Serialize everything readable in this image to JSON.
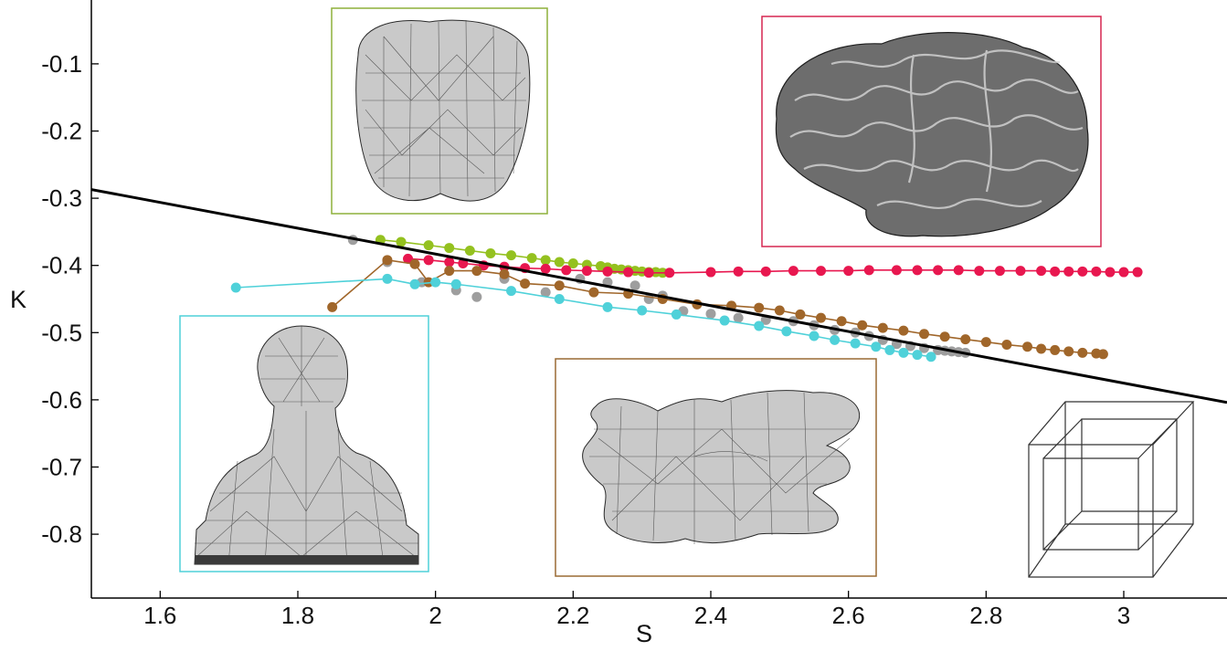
{
  "chart_data": {
    "type": "scatter",
    "xlabel": "S",
    "ylabel": "K",
    "xlim": [
      1.5,
      3.15
    ],
    "ylim": [
      -0.895,
      -0.005
    ],
    "xticks": [
      "1.6",
      "1.8",
      "2",
      "2.2",
      "2.4",
      "2.6",
      "2.8",
      "3"
    ],
    "yticks": [
      "-0.1",
      "-0.2",
      "-0.3",
      "-0.4",
      "-0.5",
      "-0.6",
      "-0.7",
      "-0.8"
    ],
    "grid": false,
    "legend": "none",
    "fit_line": {
      "x": [
        1.5,
        3.15
      ],
      "y": [
        -0.287,
        -0.604
      ],
      "color": "#000000"
    },
    "series": [
      {
        "color": "#9e9e9e",
        "connected": false,
        "x": [
          1.88,
          1.93,
          1.98,
          2.03,
          2.06,
          2.1,
          2.16,
          2.21,
          2.25,
          2.29,
          2.31,
          2.33,
          2.36,
          2.4,
          2.44,
          2.48,
          2.52,
          2.55,
          2.58,
          2.61,
          2.63,
          2.65,
          2.67,
          2.69,
          2.71,
          2.73,
          2.74,
          2.75,
          2.76,
          2.77
        ],
        "y": [
          -0.362,
          -0.395,
          -0.425,
          -0.437,
          -0.447,
          -0.42,
          -0.44,
          -0.42,
          -0.425,
          -0.43,
          -0.45,
          -0.445,
          -0.468,
          -0.472,
          -0.478,
          -0.481,
          -0.483,
          -0.489,
          -0.496,
          -0.5,
          -0.505,
          -0.511,
          -0.517,
          -0.52,
          -0.523,
          -0.526,
          -0.527,
          -0.528,
          -0.529,
          -0.53
        ]
      },
      {
        "color": "#94c11f",
        "connected": true,
        "x": [
          1.92,
          1.95,
          1.99,
          2.02,
          2.05,
          2.08,
          2.11,
          2.14,
          2.16,
          2.18,
          2.2,
          2.22,
          2.24,
          2.25,
          2.26,
          2.27,
          2.28,
          2.29,
          2.3,
          2.31,
          2.32,
          2.33
        ],
        "y": [
          -0.362,
          -0.365,
          -0.37,
          -0.374,
          -0.378,
          -0.382,
          -0.385,
          -0.389,
          -0.392,
          -0.395,
          -0.397,
          -0.399,
          -0.401,
          -0.403,
          -0.405,
          -0.406,
          -0.407,
          -0.408,
          -0.409,
          -0.41,
          -0.41,
          -0.411
        ]
      },
      {
        "color": "#e8174f",
        "connected": true,
        "x": [
          1.96,
          1.99,
          2.02,
          2.04,
          2.07,
          2.1,
          2.13,
          2.16,
          2.19,
          2.22,
          2.25,
          2.28,
          2.31,
          2.34,
          2.4,
          2.44,
          2.48,
          2.52,
          2.56,
          2.6,
          2.63,
          2.67,
          2.7,
          2.73,
          2.76,
          2.79,
          2.82,
          2.85,
          2.88,
          2.9,
          2.92,
          2.94,
          2.96,
          2.98,
          3.0,
          3.02
        ],
        "y": [
          -0.39,
          -0.392,
          -0.395,
          -0.397,
          -0.4,
          -0.402,
          -0.404,
          -0.405,
          -0.407,
          -0.408,
          -0.409,
          -0.41,
          -0.411,
          -0.411,
          -0.41,
          -0.409,
          -0.409,
          -0.408,
          -0.408,
          -0.408,
          -0.407,
          -0.407,
          -0.407,
          -0.407,
          -0.407,
          -0.408,
          -0.408,
          -0.408,
          -0.408,
          -0.409,
          -0.409,
          -0.409,
          -0.409,
          -0.41,
          -0.41,
          -0.41
        ]
      },
      {
        "color": "#a0662a",
        "connected": true,
        "x": [
          1.85,
          1.93,
          1.97,
          1.99,
          2.02,
          2.06,
          2.1,
          2.13,
          2.18,
          2.23,
          2.28,
          2.33,
          2.38,
          2.43,
          2.47,
          2.5,
          2.53,
          2.56,
          2.59,
          2.62,
          2.65,
          2.68,
          2.71,
          2.74,
          2.77,
          2.8,
          2.83,
          2.86,
          2.88,
          2.9,
          2.92,
          2.94,
          2.96,
          2.97
        ],
        "y": [
          -0.462,
          -0.392,
          -0.398,
          -0.425,
          -0.408,
          -0.408,
          -0.413,
          -0.427,
          -0.43,
          -0.44,
          -0.442,
          -0.45,
          -0.458,
          -0.46,
          -0.463,
          -0.467,
          -0.473,
          -0.478,
          -0.483,
          -0.489,
          -0.493,
          -0.497,
          -0.502,
          -0.506,
          -0.51,
          -0.514,
          -0.518,
          -0.521,
          -0.524,
          -0.526,
          -0.528,
          -0.53,
          -0.531,
          -0.532
        ]
      },
      {
        "color": "#4fd1d9",
        "connected": true,
        "x": [
          1.71,
          1.93,
          1.97,
          2.0,
          2.03,
          2.11,
          2.18,
          2.25,
          2.3,
          2.35,
          2.42,
          2.47,
          2.51,
          2.55,
          2.58,
          2.61,
          2.64,
          2.66,
          2.68,
          2.7,
          2.72
        ],
        "y": [
          -0.433,
          -0.42,
          -0.428,
          -0.425,
          -0.428,
          -0.438,
          -0.45,
          -0.462,
          -0.467,
          -0.473,
          -0.482,
          -0.49,
          -0.498,
          -0.505,
          -0.511,
          -0.516,
          -0.521,
          -0.526,
          -0.53,
          -0.533,
          -0.536
        ]
      }
    ]
  },
  "insets": [
    {
      "name": "tooth-mesh",
      "color": "#8db03a",
      "x": [
        1.87,
        2.19
      ],
      "y": [
        -0.007,
        -0.338
      ]
    },
    {
      "name": "brain-mesh",
      "color": "#d62750",
      "x": [
        2.47,
        2.95
      ],
      "y": [
        -0.019,
        -0.386
      ]
    },
    {
      "name": "bust-mesh",
      "color": "#4fd1d9",
      "x": [
        1.63,
        1.99
      ],
      "y": [
        -0.486,
        -0.852
      ]
    },
    {
      "name": "blob-mesh",
      "color": "#9a6a33",
      "x": [
        2.17,
        2.64
      ],
      "y": [
        -0.548,
        -0.866
      ]
    },
    {
      "name": "cube-wireframe",
      "color": "#333333",
      "x": [
        2.86,
        3.11
      ],
      "y": [
        -0.63,
        -0.835
      ]
    }
  ]
}
